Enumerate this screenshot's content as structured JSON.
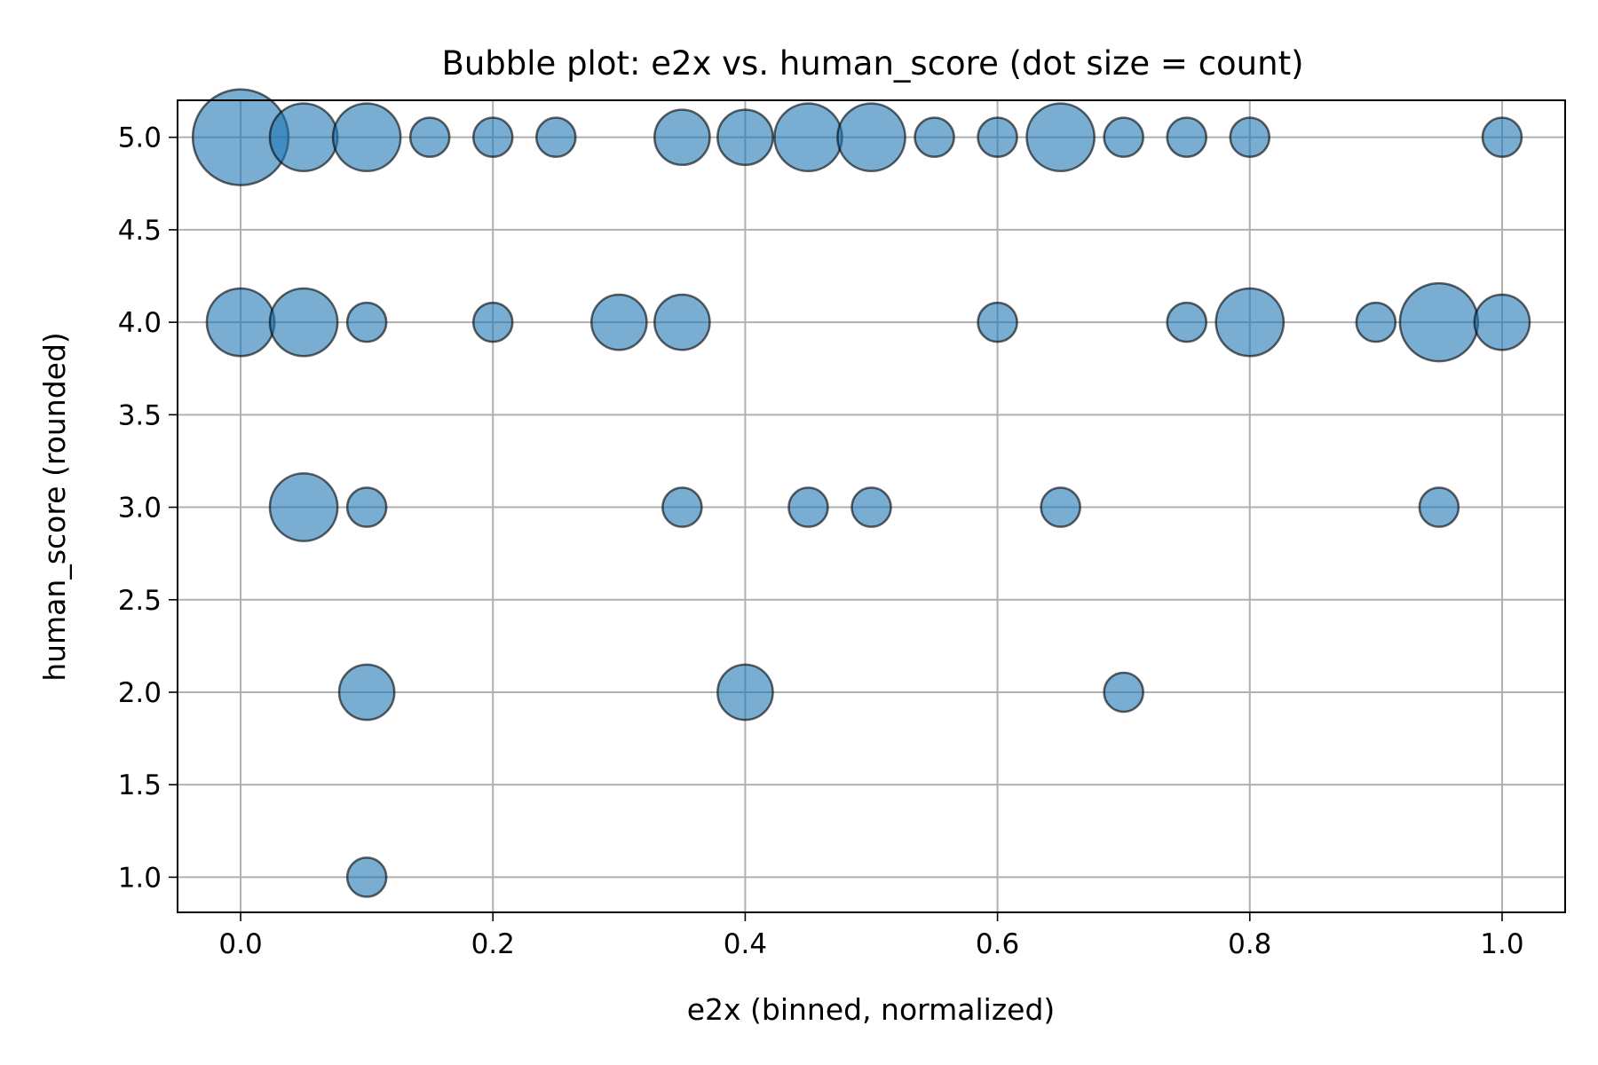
{
  "chart_data": {
    "type": "scatter",
    "title": "Bubble plot: e2x vs. human_score (dot size = count)",
    "xlabel": "e2x (binned, normalized)",
    "ylabel": "human_score (rounded)",
    "xlim": [
      -0.05,
      1.05
    ],
    "ylim": [
      0.81,
      5.2
    ],
    "x_ticks": [
      "0.0",
      "0.2",
      "0.4",
      "0.6",
      "0.8",
      "1.0"
    ],
    "y_ticks": [
      "1.0",
      "1.5",
      "2.0",
      "2.5",
      "3.0",
      "3.5",
      "4.0",
      "4.5",
      "5.0"
    ],
    "grid": true,
    "size_encoding": "count",
    "bubble_color": "#1f77b4",
    "points": [
      {
        "x": 0.0,
        "y": 5.0,
        "count": 6
      },
      {
        "x": 0.05,
        "y": 5.0,
        "count": 3
      },
      {
        "x": 0.1,
        "y": 5.0,
        "count": 3
      },
      {
        "x": 0.15,
        "y": 5.0,
        "count": 1
      },
      {
        "x": 0.2,
        "y": 5.0,
        "count": 1
      },
      {
        "x": 0.25,
        "y": 5.0,
        "count": 1
      },
      {
        "x": 0.35,
        "y": 5.0,
        "count": 2
      },
      {
        "x": 0.4,
        "y": 5.0,
        "count": 2
      },
      {
        "x": 0.45,
        "y": 5.0,
        "count": 3
      },
      {
        "x": 0.5,
        "y": 5.0,
        "count": 3
      },
      {
        "x": 0.55,
        "y": 5.0,
        "count": 1
      },
      {
        "x": 0.6,
        "y": 5.0,
        "count": 1
      },
      {
        "x": 0.65,
        "y": 5.0,
        "count": 3
      },
      {
        "x": 0.7,
        "y": 5.0,
        "count": 1
      },
      {
        "x": 0.75,
        "y": 5.0,
        "count": 1
      },
      {
        "x": 0.8,
        "y": 5.0,
        "count": 1
      },
      {
        "x": 1.0,
        "y": 5.0,
        "count": 1
      },
      {
        "x": 0.0,
        "y": 4.0,
        "count": 3
      },
      {
        "x": 0.05,
        "y": 4.0,
        "count": 3
      },
      {
        "x": 0.1,
        "y": 4.0,
        "count": 1
      },
      {
        "x": 0.2,
        "y": 4.0,
        "count": 1
      },
      {
        "x": 0.3,
        "y": 4.0,
        "count": 2
      },
      {
        "x": 0.35,
        "y": 4.0,
        "count": 2
      },
      {
        "x": 0.6,
        "y": 4.0,
        "count": 1
      },
      {
        "x": 0.75,
        "y": 4.0,
        "count": 1
      },
      {
        "x": 0.8,
        "y": 4.0,
        "count": 3
      },
      {
        "x": 0.9,
        "y": 4.0,
        "count": 1
      },
      {
        "x": 0.95,
        "y": 4.0,
        "count": 4
      },
      {
        "x": 1.0,
        "y": 4.0,
        "count": 2
      },
      {
        "x": 0.05,
        "y": 3.0,
        "count": 3
      },
      {
        "x": 0.1,
        "y": 3.0,
        "count": 1
      },
      {
        "x": 0.35,
        "y": 3.0,
        "count": 1
      },
      {
        "x": 0.45,
        "y": 3.0,
        "count": 1
      },
      {
        "x": 0.5,
        "y": 3.0,
        "count": 1
      },
      {
        "x": 0.65,
        "y": 3.0,
        "count": 1
      },
      {
        "x": 0.95,
        "y": 3.0,
        "count": 1
      },
      {
        "x": 0.1,
        "y": 2.0,
        "count": 2
      },
      {
        "x": 0.4,
        "y": 2.0,
        "count": 2
      },
      {
        "x": 0.7,
        "y": 2.0,
        "count": 1
      },
      {
        "x": 0.1,
        "y": 1.0,
        "count": 1
      }
    ]
  }
}
